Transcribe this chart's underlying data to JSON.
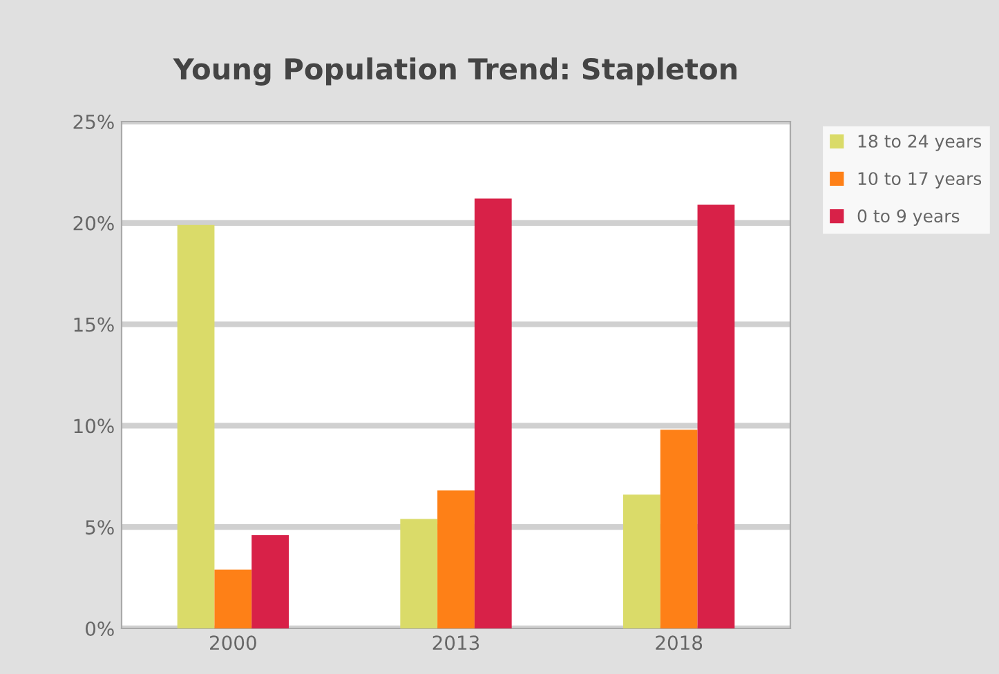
{
  "chart_data": {
    "type": "bar",
    "title": "Young Population Trend: Stapleton",
    "categories": [
      "2000",
      "2013",
      "2018"
    ],
    "series": [
      {
        "name": "18 to 24 years",
        "color": "#dadb69",
        "values": [
          19.9,
          5.4,
          6.6
        ]
      },
      {
        "name": "10 to 17 years",
        "color": "#fe8017",
        "values": [
          2.9,
          6.8,
          9.8
        ]
      },
      {
        "name": "0 to 9 years",
        "color": "#d82148",
        "values": [
          4.6,
          21.2,
          20.9
        ]
      }
    ],
    "ylim": [
      0,
      25
    ],
    "yticks": [
      {
        "value": 0,
        "label": "0%"
      },
      {
        "value": 5,
        "label": "5%"
      },
      {
        "value": 10,
        "label": "10%"
      },
      {
        "value": 15,
        "label": "15%"
      },
      {
        "value": 20,
        "label": "20%"
      },
      {
        "value": 25,
        "label": "25%"
      }
    ],
    "grid": "y",
    "legend": "top right"
  }
}
